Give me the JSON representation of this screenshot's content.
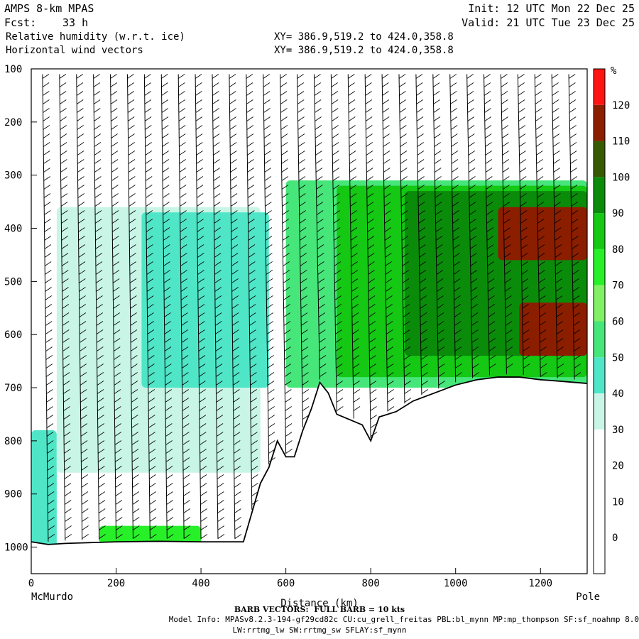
{
  "header": {
    "model": "AMPS 8-km MPAS",
    "fcst_label": "Fcst:",
    "fcst_value": "33 h",
    "init": "Init: 12 UTC Mon 22 Dec 25",
    "valid": "Valid: 21 UTC Tue 23 Dec 25",
    "field1": "Relative humidity (w.r.t. ice)",
    "field2": "Horizontal wind vectors",
    "xy1": "XY= 386.9,519.2 to 424.0,358.8",
    "xy2": "XY= 386.9,519.2 to 424.0,358.8"
  },
  "footer": {
    "barb_note": "BARB VECTORS:  FULL BARB = 10 kts",
    "model_info": "Model Info: MPASv8.2.3-194-gf29cd82c CU:cu_grell_freitas PBL:bl_mynn MP:mp_thompson SF:sf_noahmp 8.0",
    "model_info2": "LW:rrtmg_lw SW:rrtmg_sw SFLAY:sf_mynn"
  },
  "chart_data": {
    "type": "heatmap",
    "title": "Relative humidity (w.r.t. ice)",
    "xlabel": "Distance (km)",
    "ylabel": "",
    "x_endpoints": {
      "left": "McMurdo",
      "right": "Pole"
    },
    "xlim": [
      0,
      1310
    ],
    "ylim": [
      1050,
      100
    ],
    "x_ticks": [
      0,
      200,
      400,
      600,
      800,
      1000,
      1200
    ],
    "y_ticks": [
      100,
      200,
      300,
      400,
      500,
      600,
      700,
      800,
      900,
      1000
    ],
    "colorbar": {
      "unit": "%",
      "tick_labels": [
        0,
        10,
        20,
        30,
        40,
        50,
        60,
        70,
        80,
        90,
        100,
        110,
        120
      ],
      "levels": [
        {
          "min": -10,
          "max": 30,
          "color": "#ffffff"
        },
        {
          "min": 30,
          "max": 40,
          "color": "#c8f5e6"
        },
        {
          "min": 40,
          "max": 50,
          "color": "#4fe6c8"
        },
        {
          "min": 50,
          "max": 60,
          "color": "#46e67a"
        },
        {
          "min": 60,
          "max": 70,
          "color": "#82f064"
        },
        {
          "min": 70,
          "max": 80,
          "color": "#28f028"
        },
        {
          "min": 80,
          "max": 90,
          "color": "#14c814"
        },
        {
          "min": 90,
          "max": 100,
          "color": "#0a8c0a"
        },
        {
          "min": 100,
          "max": 110,
          "color": "#375a00"
        },
        {
          "min": 110,
          "max": 120,
          "color": "#8c1e00"
        },
        {
          "min": 120,
          "max": 130,
          "color": "#ff1414"
        }
      ]
    },
    "terrain_profile": {
      "x": [
        0,
        40,
        80,
        120,
        160,
        200,
        300,
        400,
        500,
        540,
        560,
        580,
        600,
        620,
        640,
        660,
        680,
        700,
        720,
        750,
        780,
        800,
        820,
        860,
        900,
        950,
        1000,
        1050,
        1100,
        1150,
        1200,
        1250,
        1310
      ],
      "p": [
        990,
        995,
        993,
        992,
        991,
        990,
        989,
        990,
        990,
        880,
        850,
        800,
        830,
        830,
        780,
        740,
        690,
        710,
        750,
        760,
        770,
        800,
        755,
        745,
        725,
        710,
        695,
        685,
        680,
        680,
        685,
        688,
        692
      ]
    },
    "rh_features": [
      {
        "x0": 0,
        "x1": 60,
        "p0": 780,
        "p1": 1000,
        "value": 45
      },
      {
        "x0": 60,
        "x1": 540,
        "p0": 360,
        "p1": 860,
        "value": 35
      },
      {
        "x0": 260,
        "x1": 560,
        "p0": 370,
        "p1": 700,
        "value": 45
      },
      {
        "x0": 600,
        "x1": 1310,
        "p0": 310,
        "p1": 700,
        "value": 55
      },
      {
        "x0": 720,
        "x1": 1310,
        "p0": 320,
        "p1": 680,
        "value": 80
      },
      {
        "x0": 880,
        "x1": 1310,
        "p0": 330,
        "p1": 640,
        "value": 92
      },
      {
        "x0": 1100,
        "x1": 1310,
        "p0": 360,
        "p1": 460,
        "value": 118
      },
      {
        "x0": 1150,
        "x1": 1310,
        "p0": 540,
        "p1": 640,
        "value": 115
      },
      {
        "x0": 160,
        "x1": 400,
        "p0": 960,
        "p1": 995,
        "value": 70
      }
    ],
    "wind_barbs": {
      "full_barb_kts": 10,
      "columns_x": [
        40,
        80,
        120,
        160,
        200,
        240,
        280,
        320,
        360,
        400,
        440,
        480,
        520,
        560,
        600,
        640,
        680,
        720,
        760,
        800,
        840,
        880,
        920,
        960,
        1000,
        1040,
        1080,
        1120,
        1160,
        1200,
        1240,
        1280
      ]
    },
    "grid": false,
    "legend": "right"
  }
}
